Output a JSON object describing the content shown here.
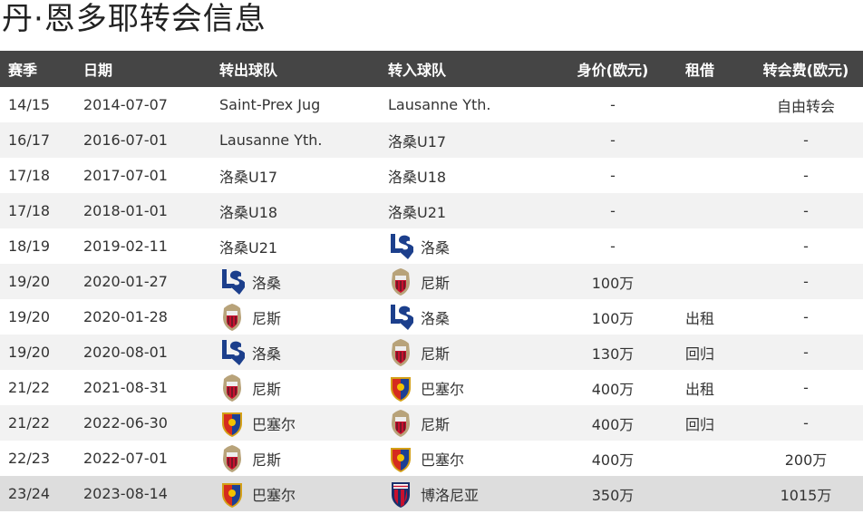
{
  "title": "丹·恩多耶转会信息",
  "headers": [
    "赛季",
    "日期",
    "转出球队",
    "转入球队",
    "身价(欧元)",
    "租借",
    "转会费(欧元)"
  ],
  "rows": [
    {
      "season": "14/15",
      "date": "2014-07-07",
      "from": "Saint-Prex Jug",
      "from_logo": "",
      "to": "Lausanne Yth.",
      "to_logo": "",
      "value": "-",
      "loan": "",
      "fee": "自由转会"
    },
    {
      "season": "16/17",
      "date": "2016-07-01",
      "from": "Lausanne Yth.",
      "from_logo": "",
      "to": "洛桑U17",
      "to_logo": "",
      "value": "-",
      "loan": "",
      "fee": "-"
    },
    {
      "season": "17/18",
      "date": "2017-07-01",
      "from": "洛桑U17",
      "from_logo": "",
      "to": "洛桑U18",
      "to_logo": "",
      "value": "-",
      "loan": "",
      "fee": "-"
    },
    {
      "season": "17/18",
      "date": "2018-01-01",
      "from": "洛桑U18",
      "from_logo": "",
      "to": "洛桑U21",
      "to_logo": "",
      "value": "-",
      "loan": "",
      "fee": "-"
    },
    {
      "season": "18/19",
      "date": "2019-02-11",
      "from": "洛桑U21",
      "from_logo": "",
      "to": "洛桑",
      "to_logo": "lausanne",
      "value": "-",
      "loan": "",
      "fee": "-"
    },
    {
      "season": "19/20",
      "date": "2020-01-27",
      "from": "洛桑",
      "from_logo": "lausanne",
      "to": "尼斯",
      "to_logo": "nice",
      "value": "100万",
      "loan": "",
      "fee": "-"
    },
    {
      "season": "19/20",
      "date": "2020-01-28",
      "from": "尼斯",
      "from_logo": "nice",
      "to": "洛桑",
      "to_logo": "lausanne",
      "value": "100万",
      "loan": "出租",
      "fee": "-"
    },
    {
      "season": "19/20",
      "date": "2020-08-01",
      "from": "洛桑",
      "from_logo": "lausanne",
      "to": "尼斯",
      "to_logo": "nice",
      "value": "130万",
      "loan": "回归",
      "fee": "-"
    },
    {
      "season": "21/22",
      "date": "2021-08-31",
      "from": "尼斯",
      "from_logo": "nice",
      "to": "巴塞尔",
      "to_logo": "basel",
      "value": "400万",
      "loan": "出租",
      "fee": "-"
    },
    {
      "season": "21/22",
      "date": "2022-06-30",
      "from": "巴塞尔",
      "from_logo": "basel",
      "to": "尼斯",
      "to_logo": "nice",
      "value": "400万",
      "loan": "回归",
      "fee": "-"
    },
    {
      "season": "22/23",
      "date": "2022-07-01",
      "from": "尼斯",
      "from_logo": "nice",
      "to": "巴塞尔",
      "to_logo": "basel",
      "value": "400万",
      "loan": "",
      "fee": "200万"
    },
    {
      "season": "23/24",
      "date": "2023-08-14",
      "from": "巴塞尔",
      "from_logo": "basel",
      "to": "博洛尼亚",
      "to_logo": "bologna",
      "value": "350万",
      "loan": "",
      "fee": "1015万",
      "highlighted": true
    }
  ]
}
